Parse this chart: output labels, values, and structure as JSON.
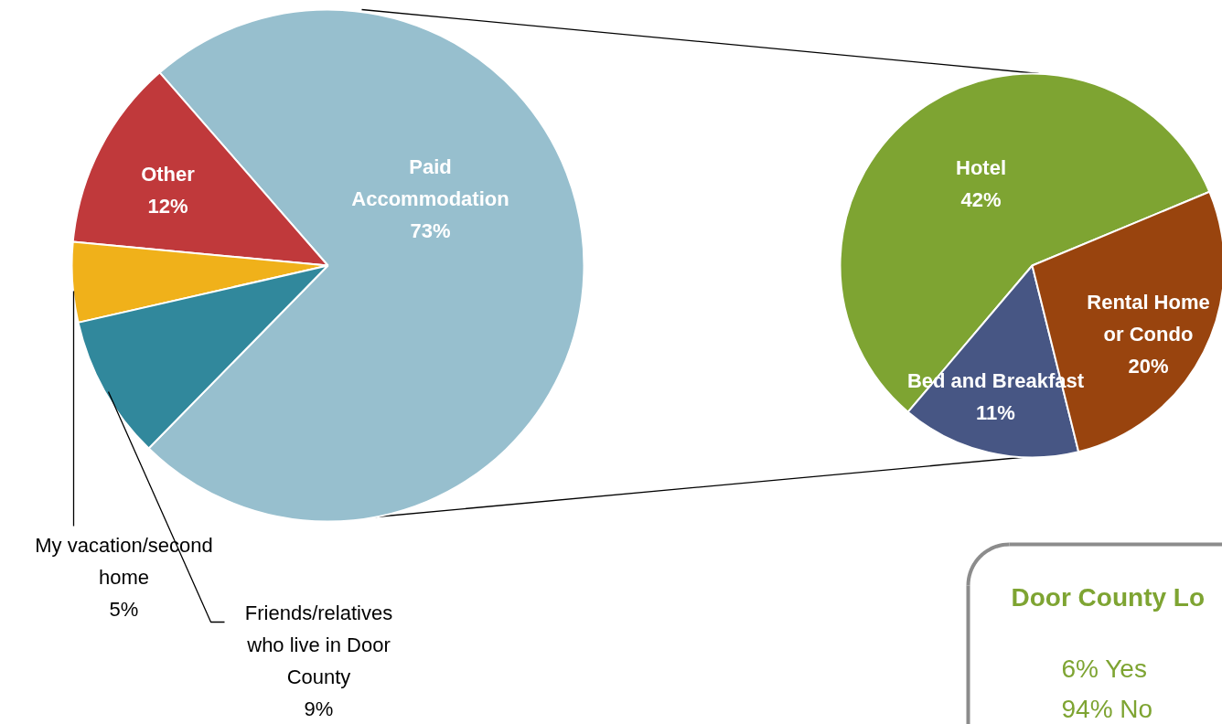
{
  "chart_data": [
    {
      "type": "pie",
      "categories": [
        "Paid Accommodation",
        "Other",
        "My vacation/second home",
        "Friends/relatives who live in Door County"
      ],
      "values": [
        73,
        12,
        5,
        9
      ],
      "colors": [
        "#97bfce",
        "#c0393b",
        "#f0b11a",
        "#31889c"
      ],
      "value_labels": [
        "73%",
        "12%",
        "5%",
        "9%"
      ]
    },
    {
      "type": "pie",
      "categories": [
        "Hotel",
        "Bed and Breakfast",
        "Rental Home or Condo"
      ],
      "values": [
        42,
        11,
        20
      ],
      "colors": [
        "#7ea432",
        "#475684",
        "#99440e"
      ],
      "value_labels": [
        "42%",
        "11%",
        "20%"
      ]
    },
    {
      "type": "other",
      "title": "Door County Lo",
      "annotations": [
        "6%  Yes",
        "94%  No"
      ]
    }
  ]
}
